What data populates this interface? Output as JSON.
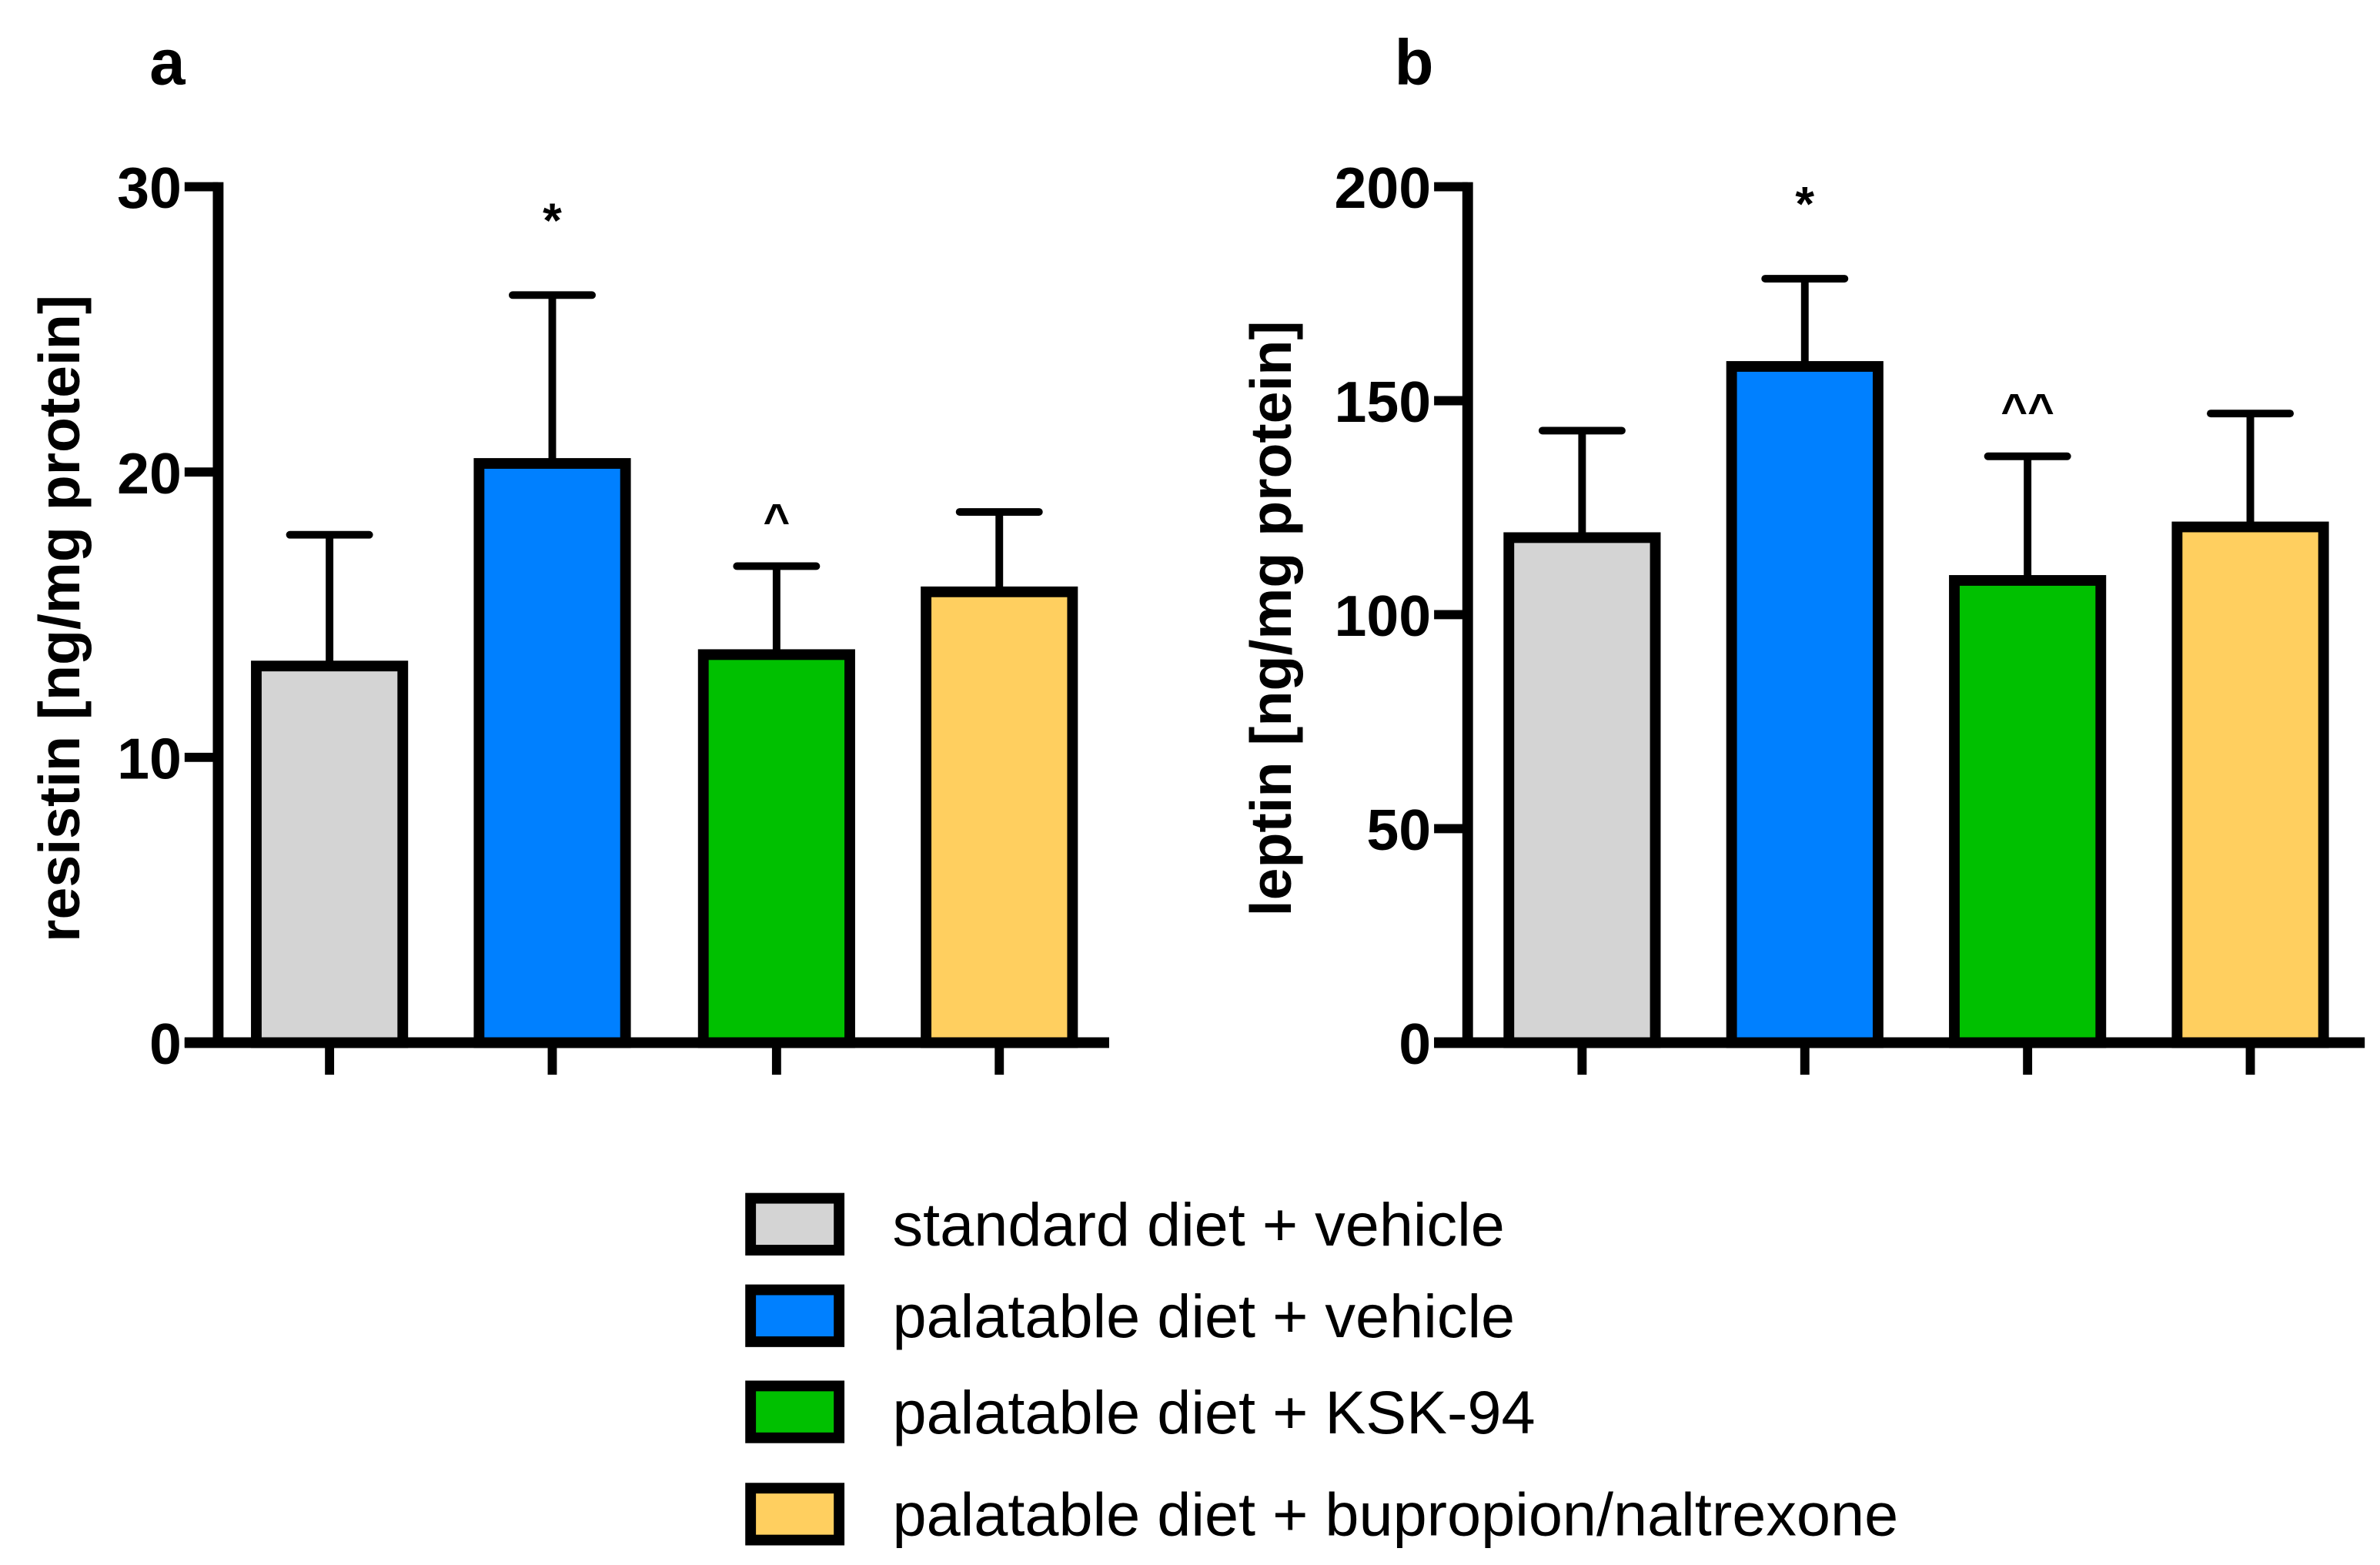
{
  "chart_data": [
    {
      "type": "bar",
      "panel_label": "a",
      "ylabel": "resistin [ng/mg protein]",
      "xlabel": "",
      "ylim": [
        0,
        30
      ],
      "yticks": [
        0,
        10,
        20,
        30
      ],
      "ytick_labels": [
        "0",
        "10",
        "20",
        "30"
      ],
      "categories": [
        "standard diet + vehicle",
        "palatable diet + vehicle",
        "palatable diet + KSK-94",
        "palatable diet + bupropion/naltrexone"
      ],
      "values": [
        13.2,
        20.3,
        13.6,
        15.8
      ],
      "error_upper": [
        17.8,
        26.2,
        16.7,
        18.6
      ],
      "annotations": [
        "",
        "*",
        "^",
        ""
      ]
    },
    {
      "type": "bar",
      "panel_label": "b",
      "ylabel": "leptin [ng/mg protein]",
      "xlabel": "",
      "ylim": [
        0,
        200
      ],
      "yticks": [
        0,
        50,
        100,
        150,
        200
      ],
      "ytick_labels": [
        "0",
        "50",
        "100",
        "150",
        "200"
      ],
      "categories": [
        "standard diet + vehicle",
        "palatable diet + vehicle",
        "palatable diet + KSK-94",
        "palatable diet + bupropion/naltrexone"
      ],
      "values": [
        118,
        158,
        108,
        120.5
      ],
      "error_upper": [
        143,
        178.5,
        137,
        147
      ],
      "annotations": [
        "",
        "*",
        "^^",
        ""
      ]
    }
  ],
  "legend": {
    "placement": "bottom-center",
    "items": [
      {
        "label": "standard diet + vehicle",
        "color": "#d4d4d4"
      },
      {
        "label": "palatable diet + vehicle",
        "color": "#0080ff"
      },
      {
        "label": "palatable diet + KSK-94",
        "color": "#00c000"
      },
      {
        "label": "palatable diet + bupropion/naltrexone",
        "color": "#ffcf5f"
      }
    ]
  }
}
